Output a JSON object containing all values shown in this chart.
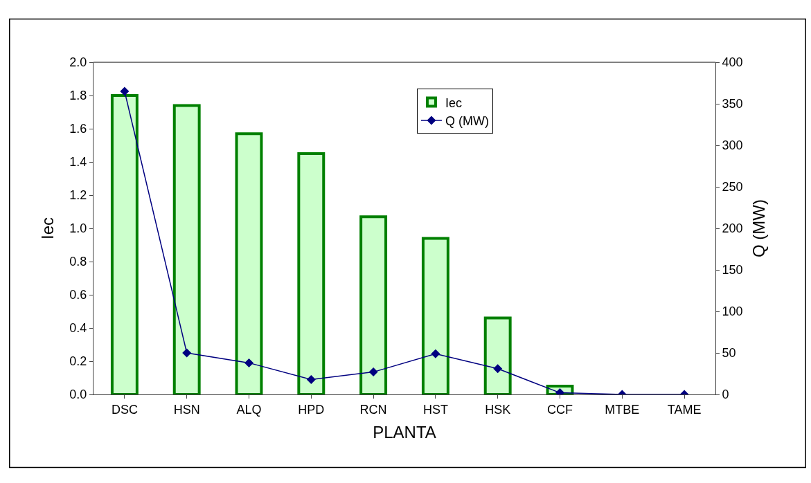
{
  "chart_data": {
    "type": "bar",
    "xlabel": "PLANTA",
    "ylabel": "Iec",
    "y2label": "Q (MW)",
    "categories": [
      "DSC",
      "HSN",
      "ALQ",
      "HPD",
      "RCN",
      "HST",
      "HSK",
      "CCF",
      "MTBE",
      "TAME"
    ],
    "series": [
      {
        "name": "Iec",
        "color": "#ccffcc",
        "values": [
          1.8,
          1.74,
          1.57,
          1.45,
          1.07,
          0.94,
          0.46,
          0.05,
          0,
          0
        ]
      },
      {
        "name": "Q (MW)",
        "type": "line",
        "axis": "y2",
        "color": "#000080",
        "marker": "diamond",
        "line_style": "solid",
        "values": [
          365,
          50,
          38,
          18,
          27,
          49,
          31,
          2,
          0,
          0
        ]
      }
    ],
    "ylim": [
      0,
      2.0
    ],
    "yticks": [
      {
        "value": 0,
        "label": "0.0"
      },
      {
        "value": 0.2,
        "label": "0.2"
      },
      {
        "value": 0.4,
        "label": "0.4"
      },
      {
        "value": 0.6,
        "label": "0.6"
      },
      {
        "value": 0.8,
        "label": "0.8"
      },
      {
        "value": 1.0,
        "label": "1.0"
      },
      {
        "value": 1.2,
        "label": "1.2"
      },
      {
        "value": 1.4,
        "label": "1.4"
      },
      {
        "value": 1.6,
        "label": "1.6"
      },
      {
        "value": 1.8,
        "label": "1.8"
      },
      {
        "value": 2.0,
        "label": "2.0"
      }
    ],
    "y2lim": [
      0,
      400
    ],
    "y2ticks": [
      0,
      50,
      100,
      150,
      200,
      250,
      300,
      350,
      400
    ],
    "legend": "top right"
  }
}
